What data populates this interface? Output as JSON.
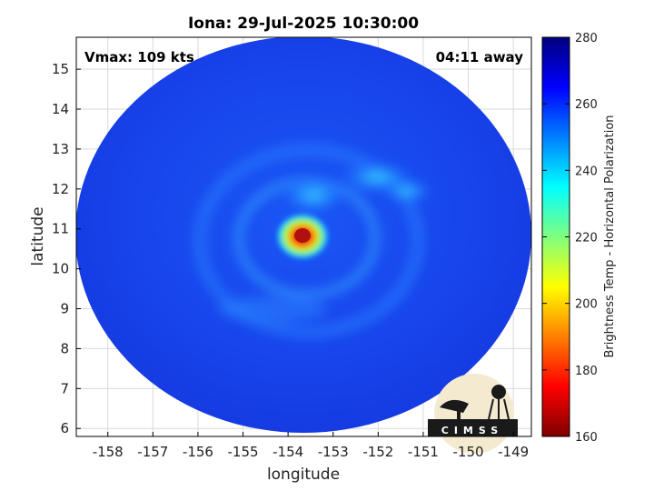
{
  "title": "Iona: 29-Jul-2025 10:30:00",
  "annotations": {
    "vmax": "Vmax: 109 kts",
    "time_away": "04:11 away"
  },
  "axes": {
    "xlabel": "longitude",
    "ylabel": "latitude",
    "xlim": [
      -158.7,
      -148.6
    ],
    "ylim": [
      5.8,
      15.8
    ],
    "xticks": [
      -158,
      -157,
      -156,
      -155,
      -154,
      -153,
      -152,
      -151,
      -150,
      -149
    ],
    "yticks": [
      6,
      7,
      8,
      9,
      10,
      11,
      12,
      13,
      14,
      15
    ],
    "grid": true
  },
  "colorbar": {
    "label": "Brightness Temp - Horizontal Polarization",
    "range": [
      160,
      280
    ],
    "ticks": [
      160,
      180,
      200,
      220,
      240,
      260,
      280
    ],
    "colormap": "jet"
  },
  "logo": {
    "text": "CIMSS"
  },
  "colors": {
    "background_field": "#1a3fe8",
    "eye_core": "#b01010",
    "frame": "#000000",
    "grid": "#d9d9d9"
  },
  "storm": {
    "eye_lon": -153.6,
    "eye_lat": 10.8,
    "eye_min_temp": 175,
    "bands": [
      {
        "lon": -153.6,
        "lat": 10.8,
        "temp": 175
      },
      {
        "lon": -153.3,
        "lat": 11.7,
        "temp": 232
      },
      {
        "lon": -152.3,
        "lat": 12.2,
        "temp": 232
      },
      {
        "lon": -151.7,
        "lat": 12.0,
        "temp": 236
      }
    ]
  }
}
